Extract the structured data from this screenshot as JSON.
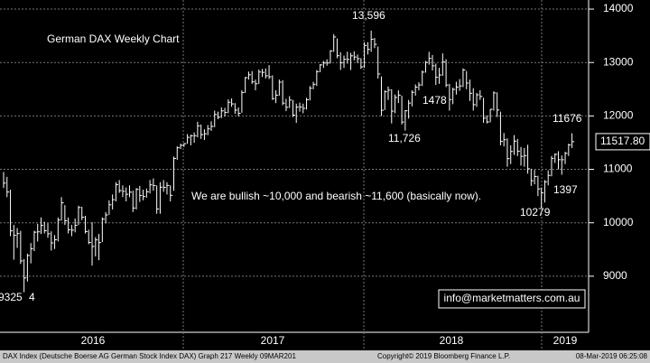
{
  "chart_data": {
    "type": "hlc",
    "title": "German DAX Weekly Chart",
    "title_color": "#5fdc5f",
    "bar_color": "#ffffff",
    "ylim": [
      7950,
      14170
    ],
    "yticks": [
      9000,
      10000,
      11000,
      12000,
      13000,
      14000
    ],
    "grid": true,
    "year_labels": [
      "2016",
      "2017",
      "2018",
      "2019"
    ],
    "high": [
      10950,
      10860,
      10620,
      9960,
      9900,
      9850,
      9320,
      9420,
      9620,
      9850,
      9980,
      10100,
      10020,
      9990,
      9840,
      9770,
      10100,
      10480,
      10330,
      10100,
      9960,
      10080,
      10320,
      10300,
      10130,
      9870,
      10010,
      9730,
      9790,
      10100,
      10200,
      10420,
      10530,
      10760,
      10800,
      10700,
      10660,
      10700,
      10600,
      10650,
      10690,
      10620,
      10640,
      10800,
      10830,
      10700,
      10760,
      10800,
      10760,
      10700,
      11240,
      11430,
      11480,
      11490,
      11660,
      11650,
      11690,
      11890,
      11840,
      11750,
      11830,
      11900,
      12100,
      12080,
      12160,
      12150,
      12310,
      12330,
      12240,
      12160,
      12480,
      12730,
      12830,
      12840,
      12680,
      12870,
      12880,
      12890,
      12950,
      12760,
      12480,
      12680,
      12670,
      12320,
      12370,
      12300,
      12230,
      12250,
      12230,
      12340,
      12560,
      12640,
      12860,
      12970,
      13030,
      13060,
      13230,
      13530,
      13450,
      13190,
      13130,
      13200,
      13180,
      13210,
      13150,
      13080,
      13380,
      13380,
      13596,
      13460,
      13300,
      12740,
      12480,
      12550,
      12500,
      12400,
      12480,
      12380,
      12110,
      12300,
      12480,
      12590,
      12630,
      12850,
      13030,
      13200,
      13140,
      12980,
      12900,
      13170,
      13060,
      12600,
      12530,
      12640,
      12690,
      12890,
      12840,
      12680,
      12520,
      12430,
      12480,
      12340,
      12010,
      12130,
      12460,
      12440,
      12080,
      11680,
      11580,
      11450,
      11640,
      11570,
      11420,
      11400,
      11460,
      11010,
      10990,
      10880,
      10660,
      10800,
      10980,
      11250,
      11300,
      11340,
      11260,
      11330,
      11480,
      11676
    ],
    "low": [
      10650,
      10480,
      9750,
      9310,
      9530,
      9230,
      8700,
      8900,
      9240,
      9470,
      9650,
      9790,
      9800,
      9720,
      9480,
      9510,
      9650,
      10040,
      9960,
      9800,
      9750,
      9820,
      9960,
      10050,
      9800,
      9600,
      9200,
      9370,
      9300,
      9640,
      9990,
      10150,
      10250,
      10400,
      10560,
      10480,
      10400,
      10480,
      10200,
      10250,
      10390,
      10420,
      10470,
      10550,
      10600,
      10170,
      10170,
      10580,
      10530,
      10400,
      10600,
      11180,
      11380,
      11420,
      11480,
      11450,
      11500,
      11600,
      11570,
      11550,
      11640,
      11720,
      11790,
      11940,
      11960,
      11990,
      12050,
      12170,
      12040,
      11990,
      12060,
      12430,
      12680,
      12600,
      12480,
      12600,
      12730,
      12700,
      12690,
      12300,
      12240,
      12380,
      12200,
      12090,
      12150,
      11980,
      11870,
      12080,
      12050,
      12120,
      12290,
      12500,
      12560,
      12820,
      12900,
      12940,
      12980,
      13200,
      13080,
      12860,
      12900,
      12980,
      12860,
      13040,
      12990,
      12880,
      12900,
      13150,
      13200,
      13270,
      12700,
      12000,
      12110,
      12300,
      11860,
      12050,
      12240,
      11840,
      11726,
      11950,
      12180,
      12380,
      12480,
      12560,
      12810,
      12960,
      12850,
      12580,
      12600,
      12750,
      12540,
      12100,
      12220,
      12400,
      12470,
      12540,
      12500,
      12280,
      12100,
      12170,
      12300,
      11870,
      11860,
      11880,
      12100,
      11980,
      11450,
      11430,
      11050,
      11100,
      11270,
      11250,
      11070,
      11050,
      10920,
      10690,
      10720,
      10500,
      10279,
      10380,
      10700,
      10870,
      11120,
      11000,
      10900,
      11100,
      11250,
      11400
    ],
    "close": [
      10743,
      10576,
      9849,
      9765,
      9798,
      9286,
      8967,
      9388,
      9513,
      9824,
      9831,
      9951,
      9851,
      9794,
      9623,
      9682,
      10051,
      10373,
      10038,
      9869,
      9862,
      9952,
      10286,
      10103,
      9834,
      9631,
      9557,
      9680,
      9629,
      10067,
      10147,
      10337,
      10432,
      10713,
      10603,
      10588,
      10534,
      10573,
      10276,
      10626,
      10511,
      10491,
      10580,
      10710,
      10696,
      10259,
      10667,
      10664,
      10699,
      10513,
      11203,
      11404,
      11450,
      11481,
      11599,
      11629,
      11630,
      11814,
      11651,
      11666,
      11757,
      11804,
      12027,
      11976,
      12095,
      12064,
      12256,
      12225,
      12109,
      12048,
      12438,
      12716,
      12770,
      12638,
      12602,
      12822,
      12815,
      12752,
      12733,
      12325,
      12389,
      12631,
      12240,
      12162,
      12297,
      12014,
      12165,
      12167,
      12142,
      12304,
      12518,
      12592,
      12828,
      12955,
      12991,
      12990,
      13217,
      13478,
      13127,
      12994,
      13060,
      13058,
      13125,
      13103,
      13072,
      12918,
      13320,
      13245,
      13434,
      13340,
      12785,
      12107,
      12452,
      12483,
      12090,
      12346,
      12390,
      11886,
      12097,
      12241,
      12442,
      12540,
      12580,
      12820,
      13001,
      13077,
      12938,
      12724,
      12766,
      13010,
      12579,
      12306,
      12496,
      12541,
      12561,
      12860,
      12615,
      12424,
      12211,
      12395,
      12364,
      11959,
      11887,
      12124,
      12430,
      12111,
      11523,
      11554,
      11201,
      11335,
      11529,
      11341,
      11244,
      11257,
      11010,
      10788,
      10865,
      10634,
      10559,
      10767,
      10887,
      11205,
      11281,
      11181,
      11180,
      11299,
      11457,
      11517.8
    ],
    "last_price_label": "11517.80",
    "annotations": [
      {
        "text": "13,596",
        "color": "#ffffff"
      },
      {
        "text": "11,726",
        "color": "#ffffff"
      },
      {
        "text": "1478",
        "color": "#f2e600"
      },
      {
        "text": "11676",
        "color": "#ffffff"
      },
      {
        "text": "1397",
        "color": "#f2e600"
      },
      {
        "text": "10279",
        "color": "#ffffff"
      },
      {
        "text": "9325",
        "color": "#ffffff"
      },
      {
        "text": "4",
        "color": "#5fdc5f"
      },
      {
        "text": "We are bullish ~10,000 and bearish ~11,600 (basically now).",
        "color": "#ffffff"
      }
    ],
    "watermark": "info@marketmatters.com.au",
    "footer": {
      "left": "DAX Index (Deutsche Boerse AG German Stock Index DAX) Graph 217  Weekly 09MAR201",
      "center": "Copyright© 2019 Bloomberg Finance L.P.",
      "right": "08-Mar-2019 06:25:08"
    }
  }
}
